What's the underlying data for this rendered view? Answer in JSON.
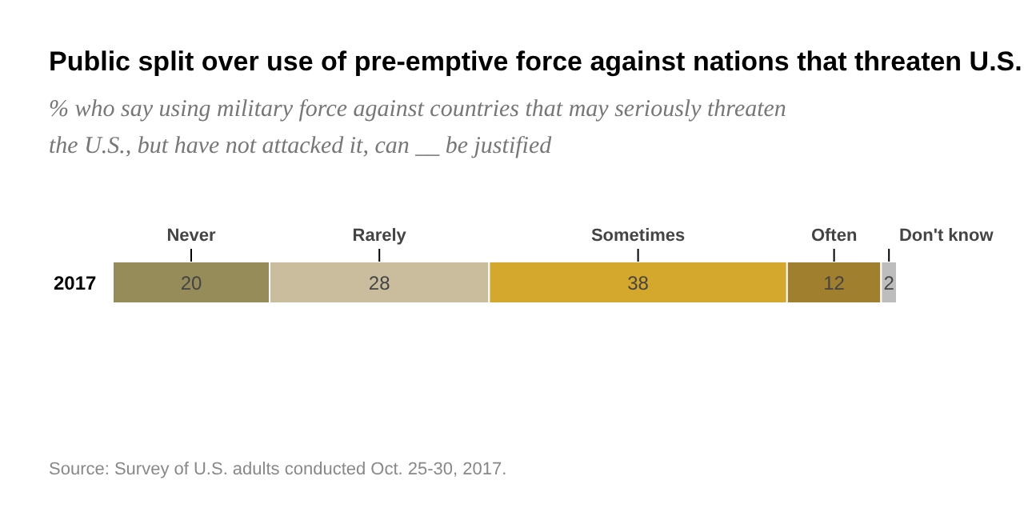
{
  "chart_data": {
    "type": "bar",
    "title": "Public split over use of pre-emptive force against nations that threaten U.S.",
    "subtitle": "% who say using military force against countries that may seriously threaten the U.S., but have not attacked it, can __ be justified",
    "categories": [
      "2017"
    ],
    "orientation": "horizontal",
    "stacked": true,
    "data_labels": true,
    "legend": false,
    "series": [
      {
        "name": "Never",
        "color": "#968c5a",
        "values": [
          20
        ]
      },
      {
        "name": "Rarely",
        "color": "#c9bd9e",
        "values": [
          28
        ]
      },
      {
        "name": "Sometimes",
        "color": "#d4a82c",
        "values": [
          38
        ]
      },
      {
        "name": "Often",
        "color": "#a07f2e",
        "values": [
          12
        ]
      },
      {
        "name": "Don't know",
        "color": "#bdbdbd",
        "values": [
          2
        ]
      }
    ],
    "annotations": [
      "Source: Survey of U.S. adults conducted Oct. 25-30, 2017."
    ]
  }
}
